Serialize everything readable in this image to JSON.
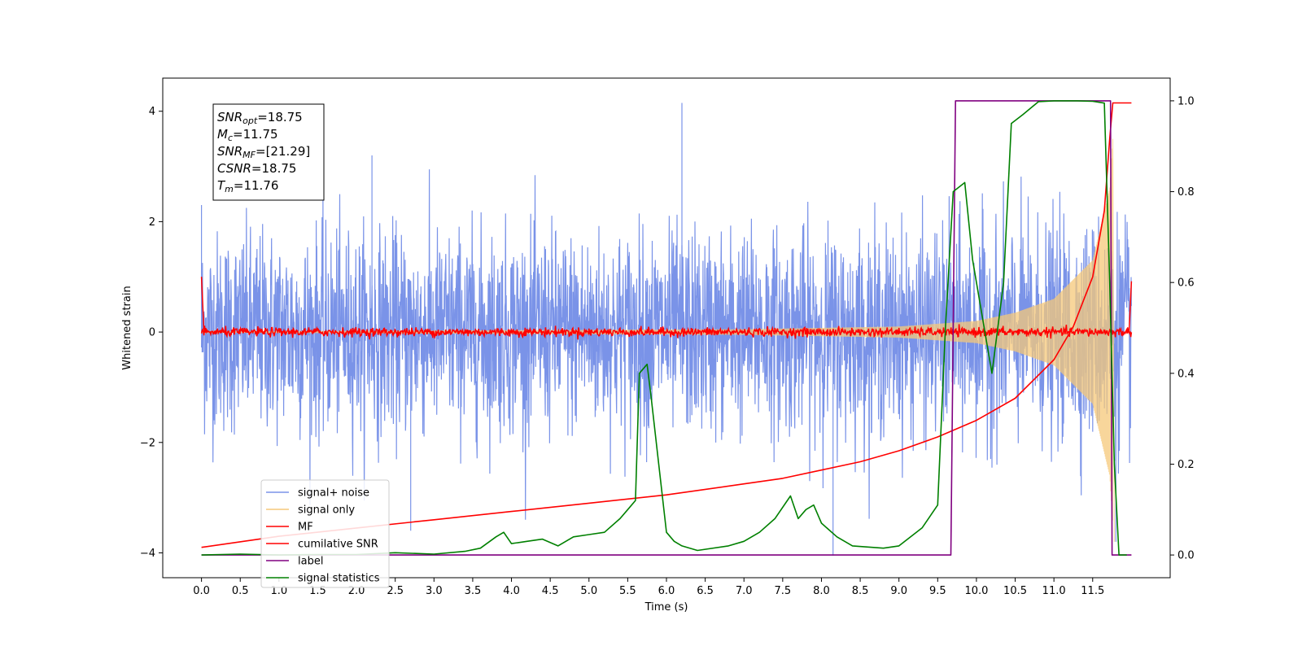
{
  "chart_data": {
    "type": "line",
    "xlabel": "Time (s)",
    "ylabel": "Whitened strain",
    "xlim": [
      -0.5,
      12.5
    ],
    "ylim": [
      -4.45,
      4.6
    ],
    "y2lim": [
      -0.05,
      1.05
    ],
    "x_ticks": [
      0.0,
      0.5,
      1.0,
      1.5,
      2.0,
      2.5,
      3.0,
      3.5,
      4.0,
      4.5,
      5.0,
      5.5,
      6.0,
      6.5,
      7.0,
      7.5,
      8.0,
      8.5,
      9.0,
      9.5,
      10.0,
      10.5,
      11.0,
      11.5
    ],
    "x_tick_labels": [
      "0.0",
      "0.5",
      "1.0",
      "1.5",
      "2.0",
      "2.5",
      "3.0",
      "3.5",
      "4.0",
      "4.5",
      "5.0",
      "5.5",
      "6.0",
      "6.5",
      "7.0",
      "7.5",
      "8.0",
      "8.5",
      "9.0",
      "9.5",
      "10.0",
      "10.5",
      "11.0",
      "11.5"
    ],
    "y_ticks": [
      -4,
      -2,
      0,
      2,
      4
    ],
    "y_tick_labels": [
      "−4",
      "−2",
      "0",
      "2",
      "4"
    ],
    "y2_ticks": [
      0.0,
      0.2,
      0.4,
      0.6,
      0.8,
      1.0
    ],
    "y2_tick_labels": [
      "0.0",
      "0.2",
      "0.4",
      "0.6",
      "0.8",
      "1.0"
    ],
    "legend_position": "lower-left",
    "annotation": [
      {
        "base": "SNR",
        "sub": "opt",
        "value": "=18.75"
      },
      {
        "base": "M",
        "sub": "c",
        "value": "=11.75"
      },
      {
        "base": "SNR",
        "sub": "MF",
        "value": "=[21.29]"
      },
      {
        "base": "CSNR",
        "sub": "",
        "value": "=18.75"
      },
      {
        "base": "T",
        "sub": "m",
        "value": "=11.76"
      }
    ],
    "series": [
      {
        "name": "signal+ noise",
        "color": "#7a93e8",
        "axis": "left",
        "style": "noise",
        "x_range": [
          0.0,
          12.0
        ],
        "approx_std": 0.9,
        "peak_values": [
          [
            0.0,
            2.3
          ],
          [
            2.2,
            3.2
          ],
          [
            2.7,
            -3.6
          ],
          [
            6.2,
            4.15
          ],
          [
            8.15,
            -4.05
          ],
          [
            11.8,
            -3.8
          ]
        ],
        "envelope_growth_from": 9.5
      },
      {
        "name": "signal only",
        "color": "#f5c87a",
        "axis": "left",
        "style": "chirp",
        "x_range": [
          0.0,
          11.76
        ],
        "amplitude_points": [
          [
            0.0,
            0.01
          ],
          [
            7.0,
            0.05
          ],
          [
            9.0,
            0.1
          ],
          [
            10.0,
            0.2
          ],
          [
            10.5,
            0.35
          ],
          [
            11.0,
            0.6
          ],
          [
            11.5,
            1.3
          ],
          [
            11.72,
            2.6
          ],
          [
            11.76,
            3.5
          ]
        ],
        "tail_min": -3.8
      },
      {
        "name": "MF",
        "color": "#ff0000",
        "axis": "left",
        "style": "noise",
        "x_range": [
          0.0,
          12.0
        ],
        "approx_std": 0.04,
        "edge_values": [
          [
            0.0,
            1.0
          ],
          [
            0.03,
            0.05
          ],
          [
            11.97,
            0.0
          ],
          [
            12.0,
            0.92
          ]
        ]
      },
      {
        "name": "cumilative SNR",
        "color": "#ff0000",
        "axis": "left",
        "style": "line",
        "x": [
          0.0,
          1.0,
          2.0,
          3.0,
          4.0,
          5.0,
          6.0,
          7.0,
          7.5,
          8.0,
          8.5,
          9.0,
          9.5,
          10.0,
          10.5,
          11.0,
          11.25,
          11.5,
          11.65,
          11.72,
          11.76,
          12.0
        ],
        "values": [
          -3.9,
          -3.7,
          -3.55,
          -3.4,
          -3.25,
          -3.1,
          -2.95,
          -2.75,
          -2.65,
          -2.5,
          -2.35,
          -2.15,
          -1.9,
          -1.6,
          -1.2,
          -0.5,
          0.1,
          1.0,
          2.2,
          3.5,
          4.15,
          4.15
        ]
      },
      {
        "name": "label",
        "color": "#800080",
        "axis": "right",
        "style": "line",
        "x": [
          0.0,
          9.67,
          9.73,
          11.73,
          11.75,
          12.0
        ],
        "values": [
          0.0,
          0.0,
          1.0,
          1.0,
          0.0,
          0.0
        ]
      },
      {
        "name": "signal statistics",
        "color": "#008000",
        "axis": "right",
        "style": "line",
        "x": [
          0.0,
          0.5,
          1.0,
          1.5,
          2.0,
          2.5,
          3.0,
          3.4,
          3.6,
          3.8,
          3.9,
          4.0,
          4.2,
          4.4,
          4.6,
          4.8,
          5.0,
          5.2,
          5.4,
          5.5,
          5.6,
          5.65,
          5.75,
          5.8,
          5.9,
          6.0,
          6.1,
          6.2,
          6.4,
          6.8,
          7.0,
          7.2,
          7.4,
          7.6,
          7.7,
          7.8,
          7.9,
          8.0,
          8.2,
          8.4,
          8.8,
          9.0,
          9.3,
          9.5,
          9.6,
          9.7,
          9.85,
          9.95,
          10.05,
          10.2,
          10.35,
          10.45,
          10.6,
          10.8,
          11.0,
          11.3,
          11.5,
          11.65,
          11.72,
          11.78,
          11.84,
          11.94
        ],
        "values": [
          0.0,
          0.002,
          0.0,
          0.001,
          0.001,
          0.005,
          0.002,
          0.008,
          0.015,
          0.04,
          0.05,
          0.025,
          0.03,
          0.035,
          0.02,
          0.04,
          0.045,
          0.05,
          0.08,
          0.1,
          0.12,
          0.4,
          0.42,
          0.35,
          0.2,
          0.05,
          0.03,
          0.02,
          0.01,
          0.02,
          0.03,
          0.05,
          0.08,
          0.13,
          0.08,
          0.1,
          0.11,
          0.07,
          0.04,
          0.02,
          0.015,
          0.02,
          0.06,
          0.11,
          0.5,
          0.8,
          0.82,
          0.65,
          0.55,
          0.4,
          0.6,
          0.95,
          0.97,
          0.998,
          1.0,
          1.0,
          0.999,
          0.995,
          0.6,
          0.2,
          0.0,
          0.0
        ]
      }
    ]
  }
}
